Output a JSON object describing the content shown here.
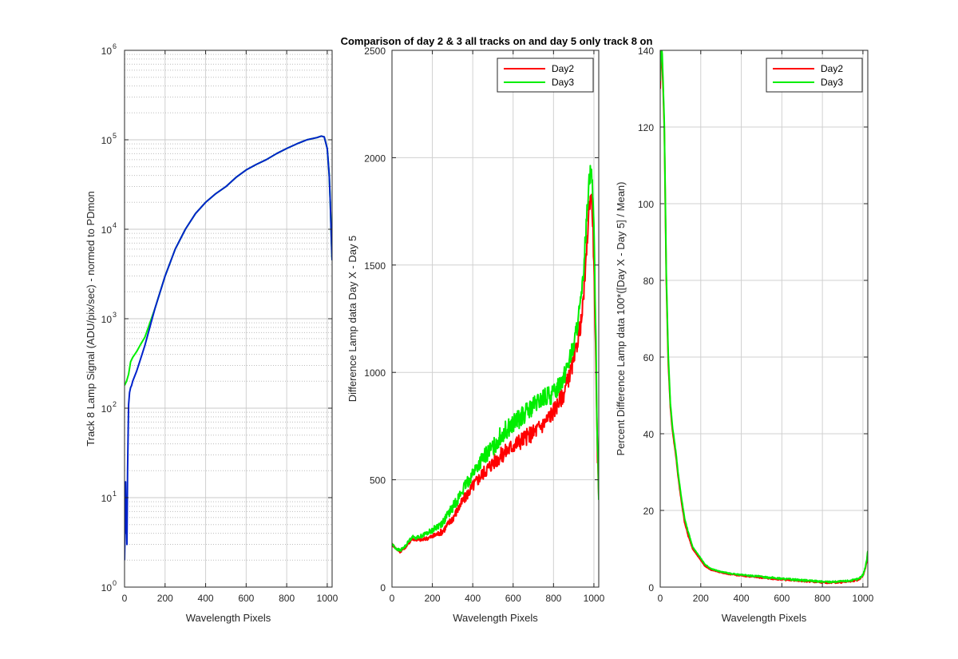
{
  "figure_title": "Comparison of day 2 & 3 all tracks on and day 5 only track 8 on",
  "colors": {
    "day2": "#ff0000",
    "day3": "#00ee00",
    "blue": "#0022cc",
    "grid": "#d0d0d0",
    "axis": "#262626"
  },
  "chart_data": [
    {
      "type": "line",
      "yscale": "log",
      "xlabel": "Wavelength Pixels",
      "ylabel": "Track 8 Lamp Signal (ADU/pix/sec) - normed to PDmon",
      "xlim": [
        0,
        1024
      ],
      "ylim": [
        1,
        1000000
      ],
      "xticks": [
        "0",
        "200",
        "400",
        "600",
        "800",
        "1000"
      ],
      "ytick_base": "10",
      "ytick_exponents": [
        "0",
        "1",
        "2",
        "3",
        "4",
        "5",
        "6"
      ],
      "grid": true,
      "series": [
        {
          "color": "green",
          "x": [
            0,
            5,
            10,
            20,
            30,
            40,
            60,
            80,
            100,
            150,
            200,
            250,
            300,
            350,
            400,
            450,
            500,
            550,
            600,
            650,
            700,
            750,
            800,
            850,
            900,
            950,
            970,
            985,
            1000,
            1010,
            1015,
            1020,
            1024
          ],
          "y": [
            180,
            190,
            200,
            240,
            330,
            370,
            430,
            520,
            620,
            1300,
            3000,
            6000,
            10000,
            15000,
            20000,
            25000,
            30000,
            38000,
            46000,
            53000,
            60000,
            70000,
            80000,
            90000,
            100000,
            106000,
            110000,
            108000,
            80000,
            40000,
            20000,
            8000,
            4500
          ]
        },
        {
          "color": "blue",
          "x": [
            0,
            3,
            5,
            8,
            10,
            12,
            15,
            18,
            20,
            25,
            30,
            35,
            40,
            60,
            80,
            100,
            150,
            200,
            250,
            300,
            350,
            400,
            450,
            500,
            550,
            600,
            650,
            700,
            750,
            800,
            850,
            900,
            950,
            970,
            985,
            1000,
            1010,
            1015,
            1020,
            1024
          ],
          "y": [
            2,
            5,
            15,
            4,
            8,
            3,
            20,
            60,
            110,
            150,
            170,
            180,
            200,
            260,
            360,
            500,
            1300,
            3000,
            6000,
            10000,
            15000,
            20000,
            25000,
            30000,
            38000,
            46000,
            53000,
            60000,
            70000,
            80000,
            90000,
            100000,
            106000,
            110000,
            108000,
            80000,
            40000,
            20000,
            8000,
            4500
          ]
        }
      ]
    },
    {
      "type": "line",
      "xlabel": "Wavelength Pixels",
      "ylabel": "Difference Lamp data Day X - Day 5",
      "xlim": [
        0,
        1024
      ],
      "ylim": [
        0,
        2500
      ],
      "xticks": [
        "0",
        "200",
        "400",
        "600",
        "800",
        "1000"
      ],
      "yticks": [
        "0",
        "500",
        "1000",
        "1500",
        "2000",
        "2500"
      ],
      "grid": true,
      "legend": {
        "placement": "top-right",
        "entries": [
          "Day2",
          "Day3"
        ]
      },
      "series": [
        {
          "name": "Day2",
          "color": "red",
          "noise": 40,
          "x": [
            0,
            20,
            40,
            60,
            80,
            100,
            120,
            150,
            180,
            200,
            250,
            300,
            350,
            400,
            450,
            500,
            550,
            600,
            650,
            700,
            750,
            800,
            850,
            900,
            940,
            960,
            975,
            985,
            995,
            1005,
            1015,
            1024
          ],
          "y": [
            200,
            180,
            165,
            180,
            200,
            225,
            220,
            220,
            230,
            235,
            260,
            320,
            400,
            470,
            530,
            580,
            620,
            660,
            690,
            720,
            760,
            820,
            900,
            1050,
            1250,
            1500,
            1750,
            1850,
            1700,
            1300,
            700,
            420
          ]
        },
        {
          "name": "Day3",
          "color": "green",
          "noise": 45,
          "x": [
            0,
            20,
            40,
            60,
            80,
            100,
            120,
            150,
            180,
            200,
            250,
            300,
            350,
            400,
            450,
            500,
            550,
            600,
            650,
            700,
            750,
            800,
            850,
            900,
            940,
            960,
            975,
            985,
            995,
            1005,
            1015,
            1024
          ],
          "y": [
            200,
            180,
            170,
            185,
            210,
            235,
            230,
            240,
            255,
            265,
            300,
            370,
            450,
            530,
            600,
            650,
            720,
            760,
            800,
            840,
            880,
            900,
            980,
            1120,
            1350,
            1650,
            1900,
            1950,
            1850,
            1450,
            800,
            450
          ]
        }
      ]
    },
    {
      "type": "line",
      "xlabel": "Wavelength Pixels",
      "ylabel": "Percent Difference Lamp data 100*([Day X - Day 5] / Mean)",
      "xlim": [
        0,
        1024
      ],
      "ylim": [
        0,
        140
      ],
      "xticks": [
        "0",
        "200",
        "400",
        "600",
        "800",
        "1000"
      ],
      "yticks": [
        "0",
        "20",
        "40",
        "60",
        "80",
        "100",
        "120",
        "140"
      ],
      "grid": true,
      "legend": {
        "placement": "top-right",
        "entries": [
          "Day2",
          "Day3"
        ]
      },
      "series": [
        {
          "name": "Day2",
          "color": "red",
          "noise": 0.8,
          "x": [
            0,
            5,
            10,
            15,
            20,
            25,
            30,
            40,
            50,
            60,
            70,
            80,
            90,
            100,
            120,
            140,
            160,
            180,
            200,
            220,
            250,
            300,
            350,
            400,
            500,
            600,
            700,
            800,
            850,
            900,
            950,
            980,
            1000,
            1010,
            1020,
            1024
          ],
          "y": [
            130,
            140,
            137,
            128,
            120,
            100,
            80,
            58,
            47,
            41,
            37,
            33,
            28,
            24,
            17,
            13,
            10,
            8.5,
            7,
            5.5,
            4.5,
            3.8,
            3.3,
            3,
            2.5,
            2,
            1.6,
            1.2,
            1.2,
            1.3,
            1.6,
            2,
            3,
            4.5,
            7,
            9
          ]
        },
        {
          "name": "Day3",
          "color": "green",
          "noise": 0.8,
          "x": [
            0,
            5,
            10,
            15,
            20,
            25,
            30,
            40,
            50,
            60,
            70,
            80,
            90,
            100,
            120,
            140,
            160,
            180,
            200,
            220,
            250,
            300,
            350,
            400,
            500,
            600,
            700,
            800,
            850,
            900,
            950,
            980,
            1000,
            1010,
            1020,
            1024
          ],
          "y": [
            132,
            142,
            139,
            130,
            121,
            102,
            82,
            60,
            48,
            42,
            38,
            34,
            29,
            25,
            18,
            14,
            10.5,
            9,
            7.5,
            6,
            4.8,
            4,
            3.5,
            3.2,
            2.7,
            2.2,
            1.8,
            1.4,
            1.4,
            1.5,
            1.8,
            2.2,
            3.2,
            4.8,
            7.5,
            9.5
          ]
        }
      ]
    }
  ]
}
